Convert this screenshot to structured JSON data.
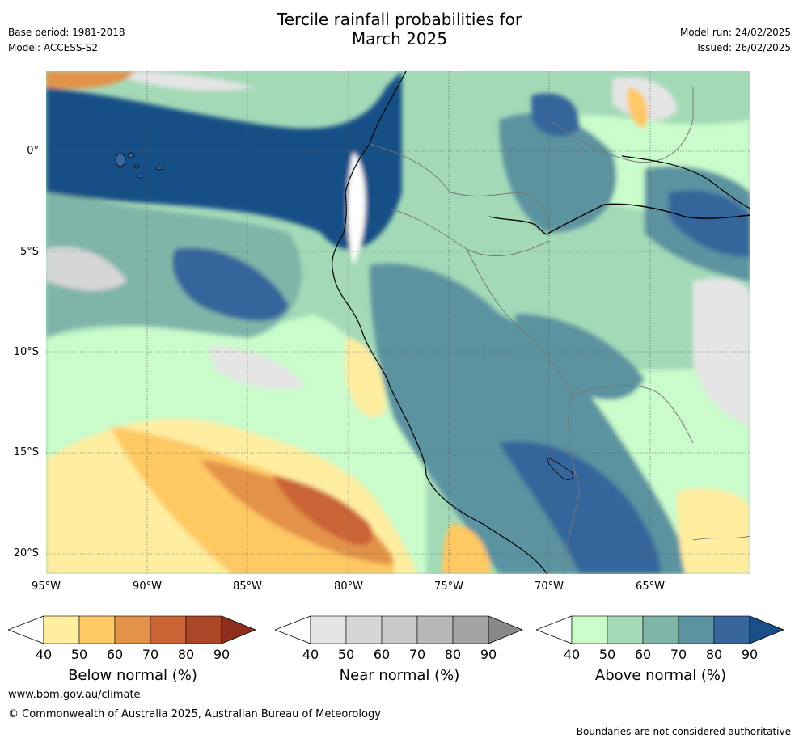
{
  "title_line1": "Tercile rainfall probabilities for",
  "title_line2": "March 2025",
  "meta_left": [
    "Base period: 1981-2018",
    "Model: ACCESS-S2"
  ],
  "meta_right": [
    "Model run: 24/02/2025",
    "Issued: 26/02/2025"
  ],
  "lat_labels": [
    "0°",
    "5°S",
    "10°S",
    "15°S",
    "20°S"
  ],
  "lon_labels": [
    "95°W",
    "90°W",
    "85°W",
    "80°W",
    "75°W",
    "70°W",
    "65°W"
  ],
  "colorbars": [
    {
      "label": "Below normal (%)",
      "ticks": [
        "40",
        "50",
        "60",
        "70",
        "80",
        "90"
      ],
      "colors": [
        "#ffeda0",
        "#fec863",
        "#e3924a",
        "#ca6434",
        "#ab4626",
        "#8e2f1e"
      ]
    },
    {
      "label": "Near normal (%)",
      "ticks": [
        "40",
        "50",
        "60",
        "70",
        "80",
        "90"
      ],
      "colors": [
        "#e5e5e5",
        "#d6d6d6",
        "#c8c8c8",
        "#b7b7b7",
        "#a3a3a3",
        "#888888"
      ]
    },
    {
      "label": "Above normal (%)",
      "ticks": [
        "40",
        "50",
        "60",
        "70",
        "80",
        "90"
      ],
      "colors": [
        "#c9fbcb",
        "#a4d9b7",
        "#7fb5a9",
        "#5b93a0",
        "#36669b",
        "#174f86"
      ]
    }
  ],
  "footer_url": "www.bom.gov.au/climate",
  "footer_copyright": "© Commonwealth of Australia 2025, Australian Bureau of Meteorology",
  "disclaimer": "Boundaries are not considered authoritative"
}
